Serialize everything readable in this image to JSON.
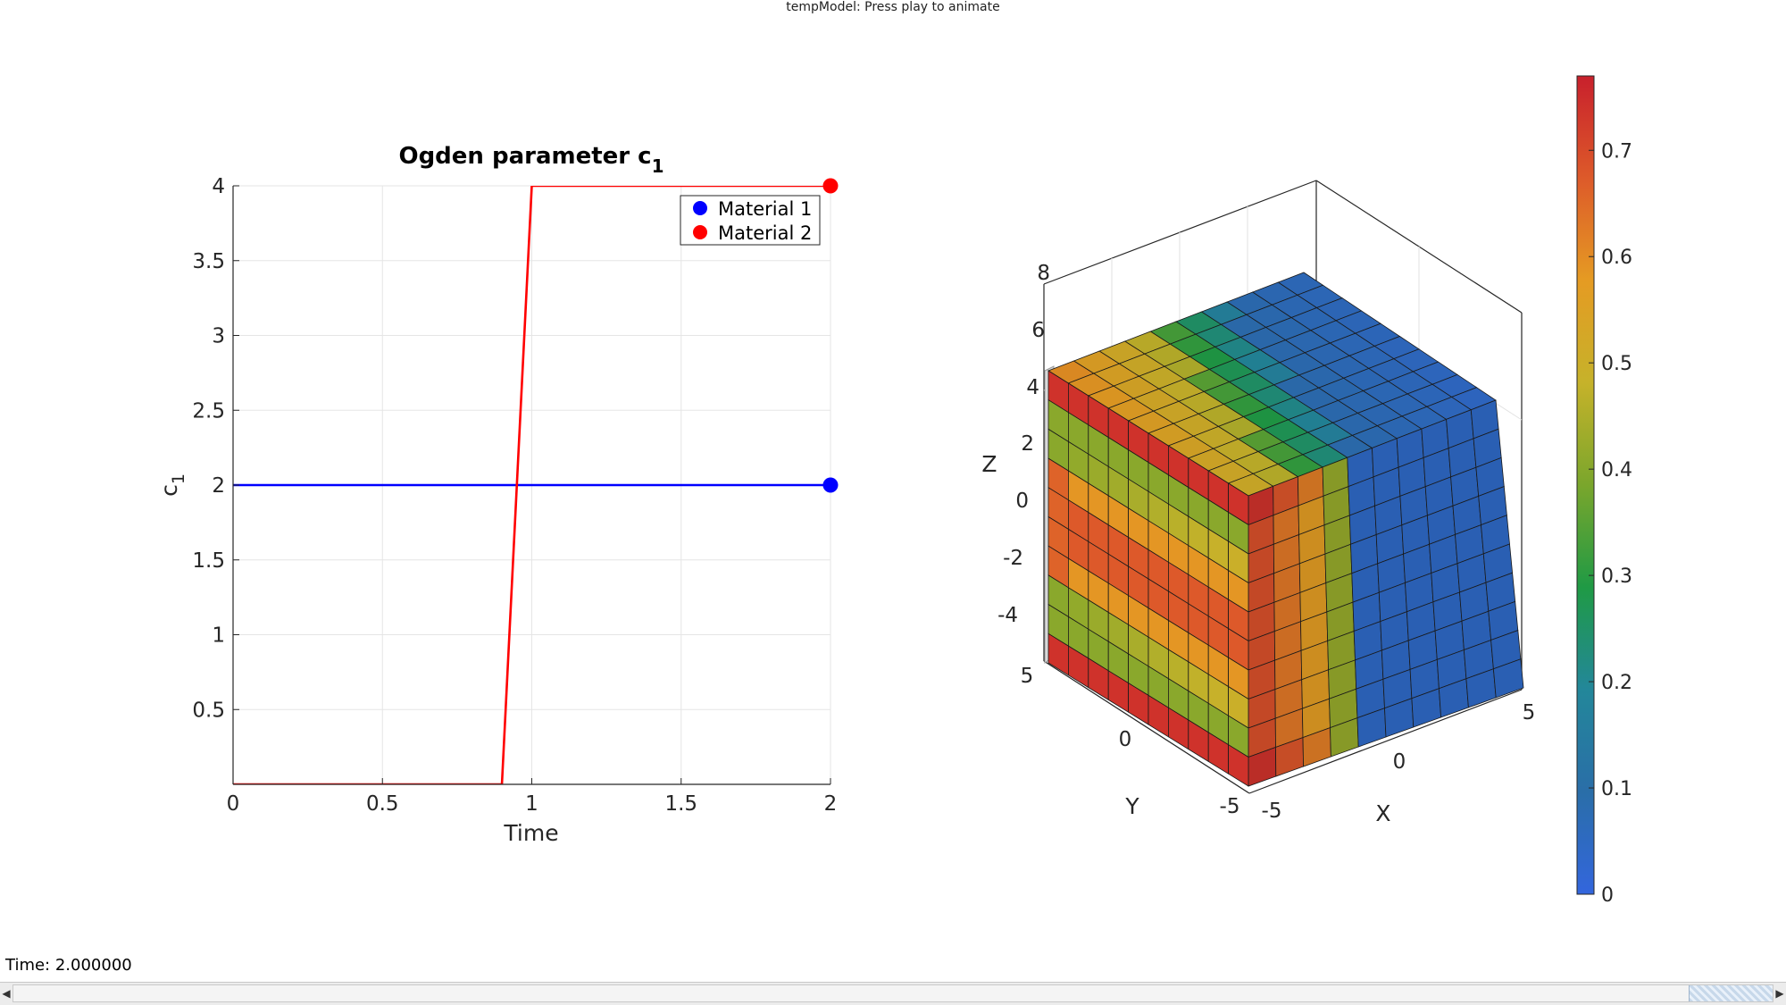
{
  "window": {
    "title": "tempModel: Press play to animate"
  },
  "status": {
    "time_label": "Time: 2.000000"
  },
  "colors": {
    "material1": "#0000ff",
    "material2": "#ff0000",
    "grid": "#e5e5e5",
    "colormap": [
      "#3366dd",
      "#2a6ea8",
      "#23879a",
      "#1f9a45",
      "#7aa62c",
      "#c6b22a",
      "#e59b23",
      "#dd5a2a",
      "#c8202c"
    ]
  },
  "chart_data": [
    {
      "type": "line",
      "title": "Ogden parameter c",
      "title_subscript": "1",
      "xlabel": "Time",
      "ylabel": "c",
      "ylabel_subscript": "1",
      "xlim": [
        0,
        2
      ],
      "ylim": [
        0,
        4
      ],
      "xticks": [
        0,
        0.5,
        1,
        1.5,
        2
      ],
      "xtick_labels": [
        "0",
        "0.5",
        "1",
        "1.5",
        "2"
      ],
      "yticks": [
        0.5,
        1,
        1.5,
        2,
        2.5,
        3,
        3.5,
        4
      ],
      "ytick_labels": [
        "0.5",
        "1",
        "1.5",
        "2",
        "2.5",
        "3",
        "3.5",
        "4"
      ],
      "grid": true,
      "legend_location": "top-right",
      "series": [
        {
          "name": "Material 1",
          "x": [
            0,
            2
          ],
          "y": [
            2,
            2
          ],
          "marker_at": [
            2,
            2
          ]
        },
        {
          "name": "Material 2",
          "x": [
            0,
            0.9,
            1,
            2
          ],
          "y": [
            0,
            0,
            4,
            4
          ],
          "marker_at": [
            2,
            4
          ]
        }
      ]
    },
    {
      "type": "heatmap",
      "description": "3D deformed hexahedral mesh colored by a scalar field",
      "xlabel": "X",
      "ylabel": "Y",
      "zlabel": "Z",
      "xtick_labels": [
        "-5",
        "0",
        "5"
      ],
      "ytick_labels": [
        "5",
        "0",
        "-5"
      ],
      "ztick_labels": [
        "-4",
        "-2",
        "0",
        "2",
        "4",
        "6",
        "8"
      ],
      "colorbar": {
        "min": 0,
        "max": 0.77,
        "ticks": [
          0,
          0.1,
          0.2,
          0.3,
          0.4,
          0.5,
          0.6,
          0.7
        ],
        "tick_labels": [
          "0",
          "0.1",
          "0.2",
          "0.3",
          "0.4",
          "0.5",
          "0.6",
          "0.7"
        ]
      }
    }
  ]
}
